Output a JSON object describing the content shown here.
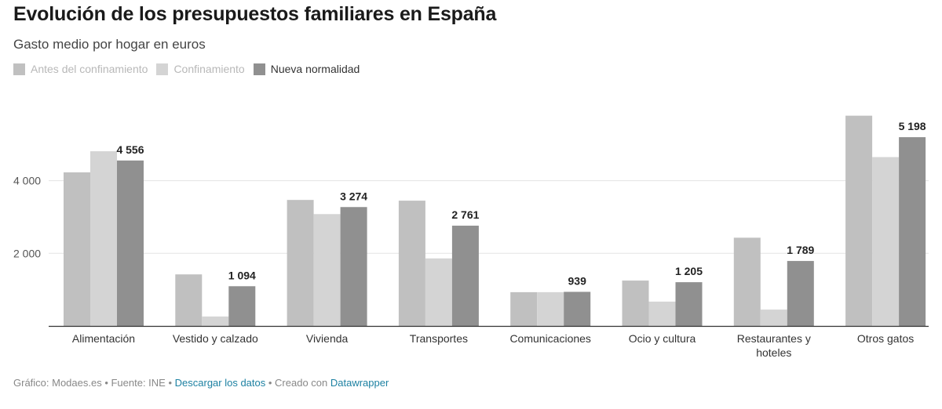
{
  "header": {
    "title": "Evolución de los presupuestos familiares en España",
    "subtitle": "Gasto medio por hogar en euros"
  },
  "legend": [
    {
      "label": "Antes del confinamiento",
      "color": "#c0c0c0"
    },
    {
      "label": "Confinamiento",
      "color": "#d4d4d4"
    },
    {
      "label": "Nueva normalidad",
      "color": "#909090"
    }
  ],
  "footer": {
    "prefix": "Gráfico: Modaes.es • Fuente: INE • ",
    "download_link": "Descargar los datos",
    "middle": " • Creado con ",
    "tool_link": "Datawrapper"
  },
  "chart_data": {
    "type": "bar",
    "categories": [
      "Alimentación",
      "Vestido y calzado",
      "Vivienda",
      "Transportes",
      "Comunicaciones",
      "Ocio y cultura",
      "Restaurantes y hoteles",
      "Otros gatos"
    ],
    "series": [
      {
        "name": "Antes del confinamiento",
        "values": [
          4230,
          1420,
          3470,
          3450,
          930,
          1250,
          2430,
          5790
        ],
        "color": "#c0c0c0"
      },
      {
        "name": "Confinamiento",
        "values": [
          4810,
          260,
          3080,
          1860,
          930,
          670,
          450,
          4650
        ],
        "color": "#d4d4d4"
      },
      {
        "name": "Nueva normalidad",
        "values": [
          4556,
          1094,
          3274,
          2761,
          939,
          1205,
          1789,
          5198
        ],
        "color": "#909090"
      }
    ],
    "data_labels": [
      "4 556",
      "1 094",
      "3 274",
      "2 761",
      "939",
      "1 205",
      "1 789",
      "5 198"
    ],
    "y_ticks": [
      {
        "value": 2000,
        "label": "2 000"
      },
      {
        "value": 4000,
        "label": "4 000"
      }
    ],
    "ylim": [
      0,
      6000
    ],
    "grid": true
  }
}
